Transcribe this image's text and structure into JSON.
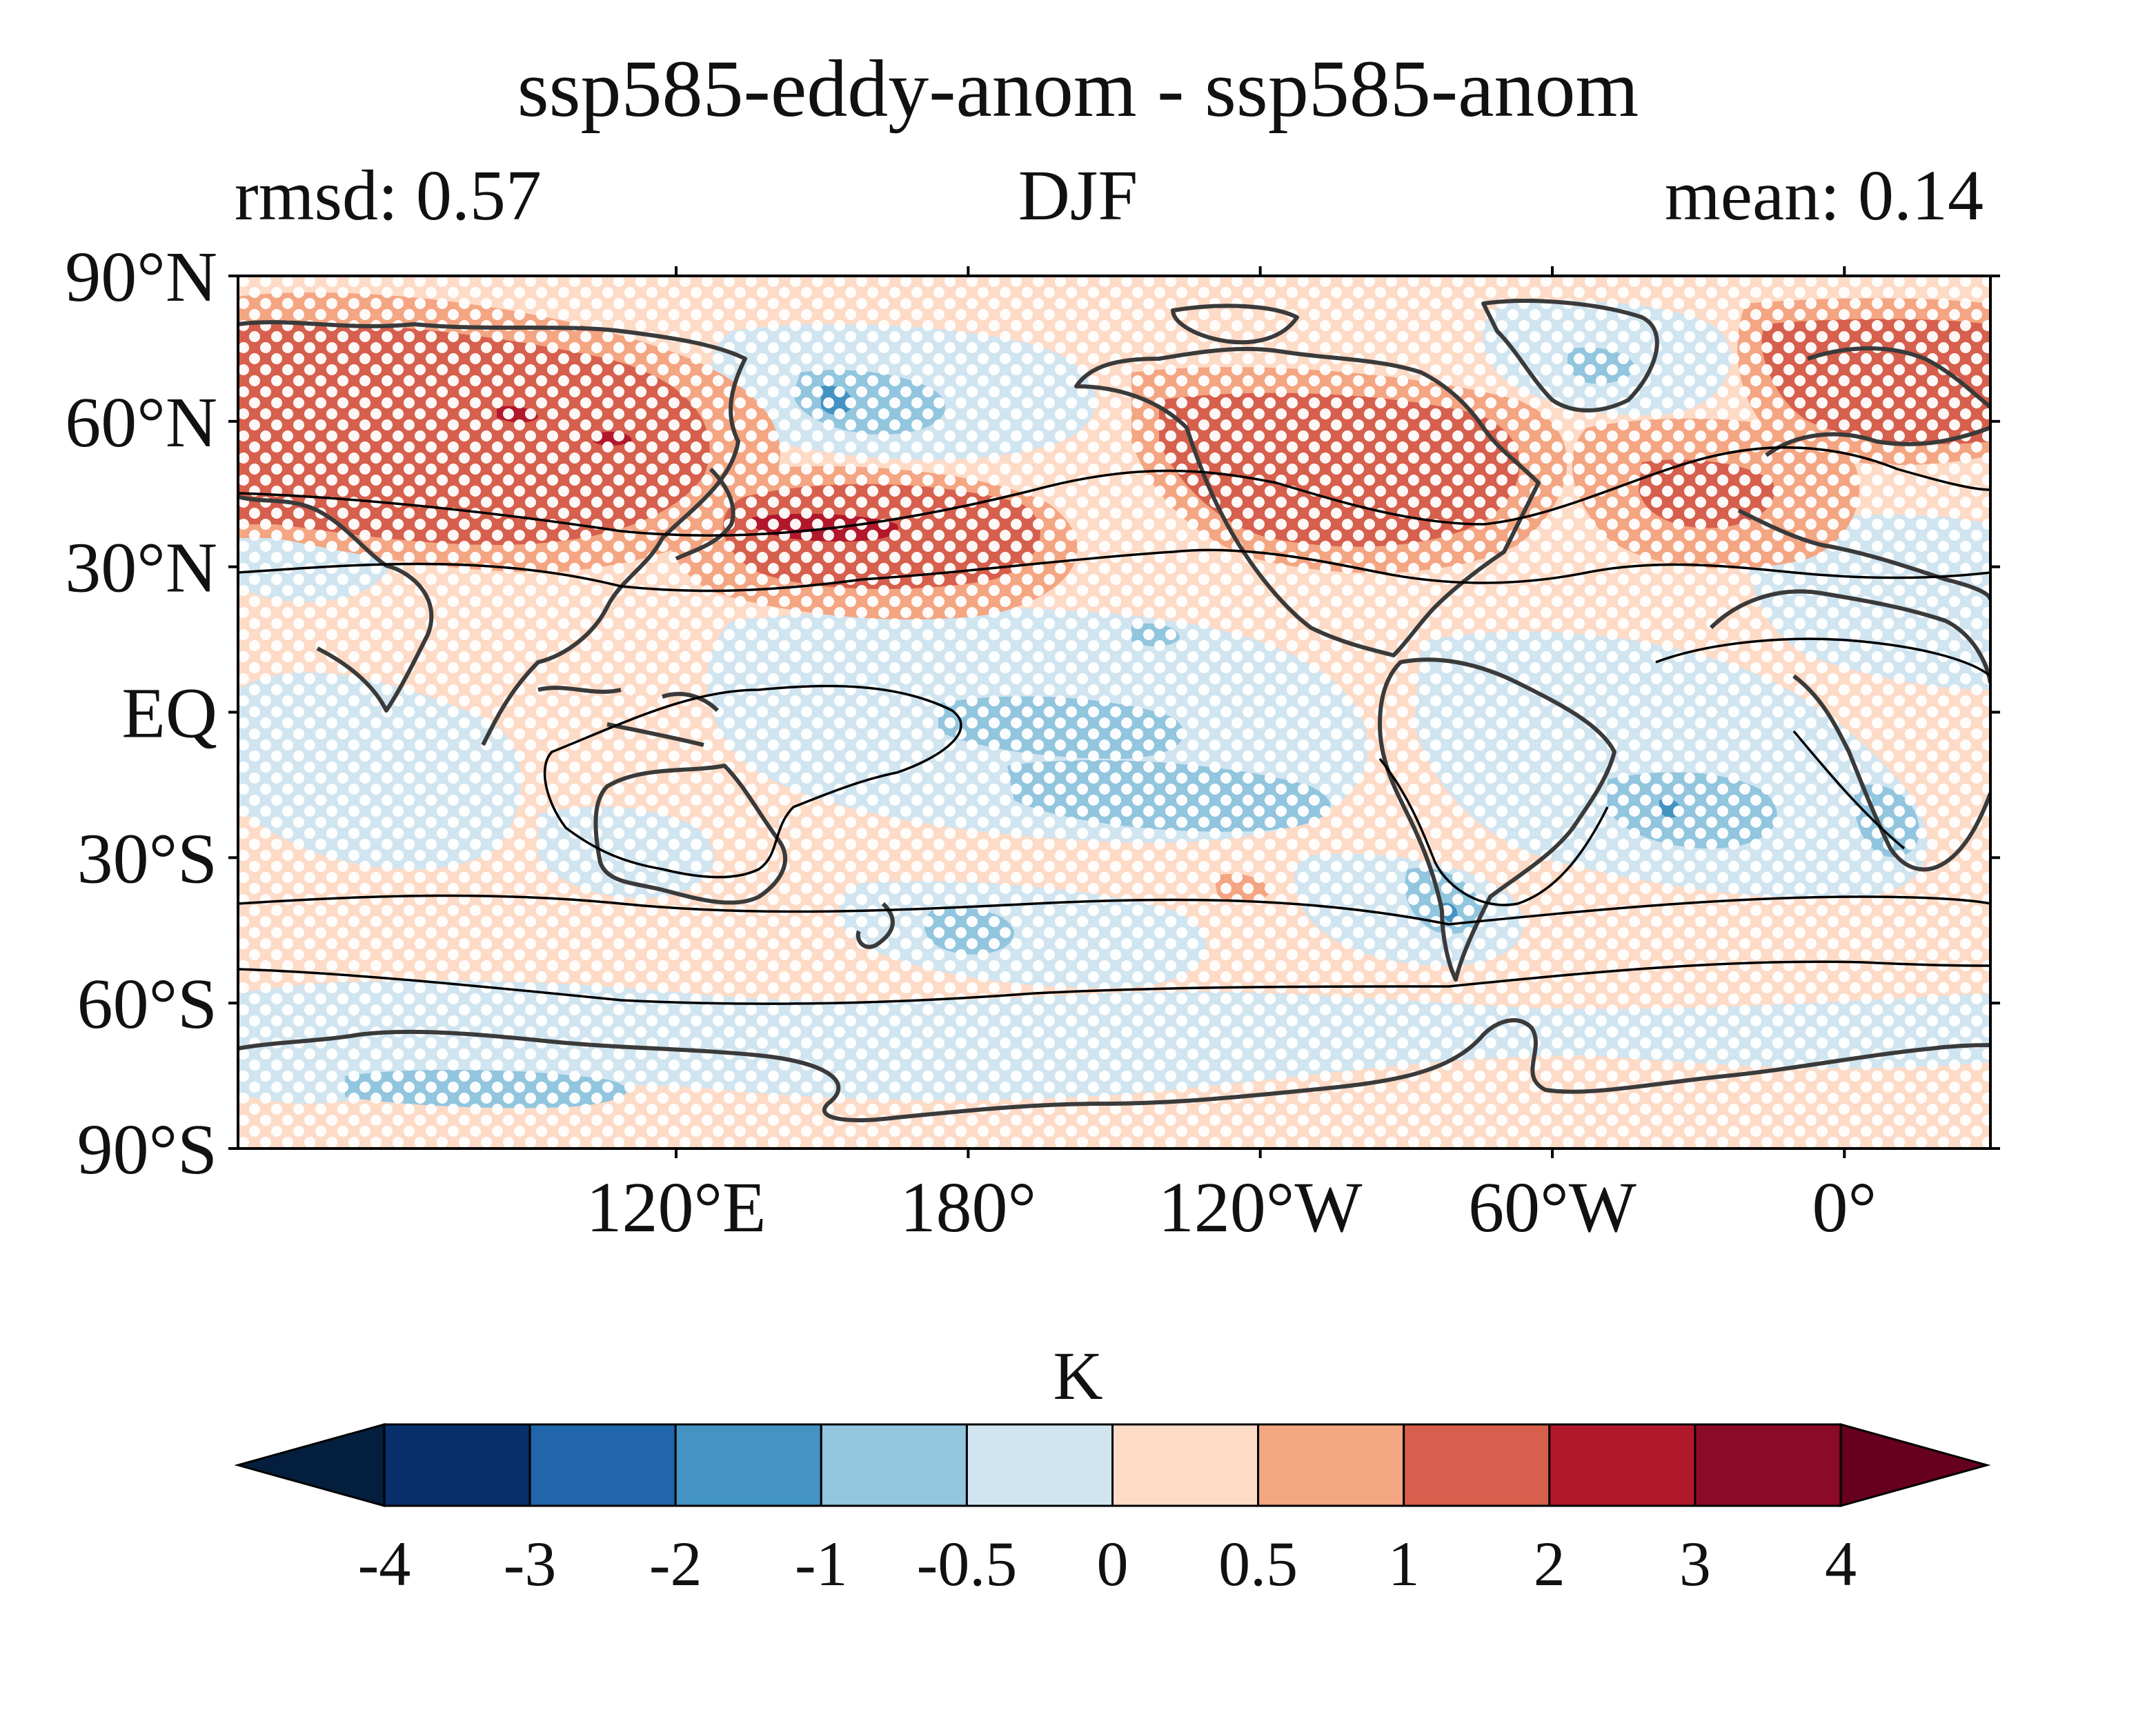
{
  "figure": {
    "title": "ssp585-eddy-anom - ssp585-anom",
    "left_subtitle": "rmsd: 0.57",
    "center_subtitle": "DJF",
    "right_subtitle": "mean: 0.14"
  },
  "map": {
    "projection": "equirectangular",
    "central_longitude": "Greenwich-shifted (map spans 30°E → 30°E eastward)",
    "lat_ticks": [
      "90°N",
      "60°N",
      "30°N",
      "EQ",
      "30°S",
      "60°S",
      "90°S"
    ],
    "lat_values": [
      90,
      60,
      30,
      0,
      -30,
      -60,
      -90
    ],
    "lon_ticks": [
      "120°E",
      "180°",
      "120°W",
      "60°W",
      "0°"
    ],
    "lon_values": [
      120,
      180,
      240,
      300,
      360
    ],
    "stippling": "white dots over non-significant regions",
    "contour_lines": "black climatology contours (jet position)"
  },
  "colorbar": {
    "label": "K",
    "ticks": [
      "-4",
      "-3",
      "-2",
      "-1",
      "-0.5",
      "0",
      "0.5",
      "1",
      "2",
      "3",
      "4"
    ],
    "colors": [
      "#053061",
      "#08306b",
      "#2166ac",
      "#4393c3",
      "#92c5de",
      "#d1e5f0",
      "#fddbc7",
      "#f4a582",
      "#d6604d",
      "#b2182b",
      "#8b0a26",
      "#67001f"
    ],
    "extend": "both"
  }
}
